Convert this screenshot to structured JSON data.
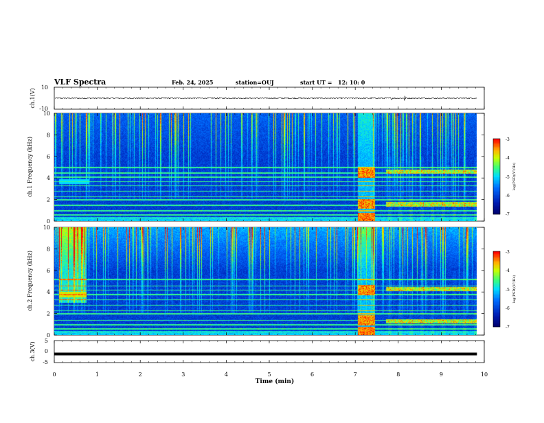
{
  "header": {
    "title": "VLF Spectra",
    "date": "Feb. 24, 2025",
    "station": "station=OUJ",
    "start_label": "start  UT =",
    "start_time": "12: 10: 0"
  },
  "colors": {
    "background": "#ffffff",
    "axis": "#000000",
    "spectrogram_low": "#0b1e8a",
    "spectrogram_mid": "#00c8ff",
    "spectrogram_high": "#ff2000"
  },
  "colorbar_colors": [
    "#ff0000",
    "#ff4000",
    "#ff8000",
    "#ffd000",
    "#c8ff00",
    "#40ff40",
    "#00ffb0",
    "#00e0ff",
    "#0080ff",
    "#0030d0",
    "#000090"
  ],
  "chart_data": [
    {
      "id": "ch1_waveform",
      "type": "line",
      "ylabel": "ch.1(V)",
      "ylim": [
        -10,
        10
      ],
      "yticks": [
        "10",
        "-10"
      ],
      "xlim": [
        0,
        10
      ],
      "baseline": 0,
      "noise_amplitude": 0.5,
      "spikes": [
        {
          "x": 7.85,
          "y": 1.2
        },
        {
          "x": 8.15,
          "y": 2.2
        }
      ]
    },
    {
      "id": "ch1_spectrogram",
      "type": "heatmap",
      "ylabel": "ch.1\nFrequency (kHz)",
      "ylim": [
        0,
        10
      ],
      "yticks": [
        "0",
        "2",
        "4",
        "6",
        "8",
        "10"
      ],
      "xlim": [
        0,
        10
      ],
      "data_end_min": 9.83,
      "colorbar": {
        "label": "log(PSD)(V²/Hz)",
        "range": [
          -7,
          -3
        ],
        "ticks": [
          "-3",
          "-4",
          "-5",
          "-6",
          "-7"
        ]
      },
      "lines_khz": [
        0.3,
        0.6,
        1.0,
        1.5,
        2.0,
        2.3,
        2.8,
        3.3,
        3.7,
        4.1,
        4.5,
        5.0
      ],
      "event_burst": {
        "start_min": 7.05,
        "end_min": 7.45,
        "bands_khz": [
          1.6,
          4.5
        ]
      },
      "late_bands_khz": [
        1.6,
        4.6
      ]
    },
    {
      "id": "ch2_spectrogram",
      "type": "heatmap",
      "ylabel": "ch.2\nFrequency (kHz)",
      "ylim": [
        0,
        10
      ],
      "yticks": [
        "0",
        "2",
        "4",
        "6",
        "8",
        "10"
      ],
      "xlim": [
        0,
        10
      ],
      "data_end_min": 9.83,
      "colorbar": {
        "label": "log(PSD)(V²/Hz)",
        "range": [
          -7,
          -3
        ],
        "ticks": [
          "-3",
          "-4",
          "-5",
          "-6",
          "-7"
        ]
      },
      "lines_khz": [
        0.3,
        0.6,
        1.0,
        1.4,
        2.0,
        2.3,
        2.8,
        3.3,
        3.8,
        4.2,
        4.6,
        5.2
      ],
      "early_burst": {
        "start_min": 0.1,
        "end_min": 0.75,
        "band_khz": 3.8
      },
      "event_burst": {
        "start_min": 7.05,
        "end_min": 7.45,
        "bands_khz": [
          1.4,
          4.2
        ]
      },
      "late_bands_khz": [
        1.3,
        4.3
      ]
    },
    {
      "id": "ch3_waveform",
      "type": "line",
      "ylabel": "ch.3(V)",
      "ylim": [
        -5,
        5
      ],
      "yticks": [
        "5",
        "0",
        "-5"
      ],
      "xlim": [
        0,
        10
      ],
      "baseline": -1.1
    }
  ],
  "x_axis": {
    "label": "Time (min)",
    "ticks": [
      "0",
      "1",
      "2",
      "3",
      "4",
      "5",
      "6",
      "7",
      "8",
      "9",
      "10"
    ]
  }
}
